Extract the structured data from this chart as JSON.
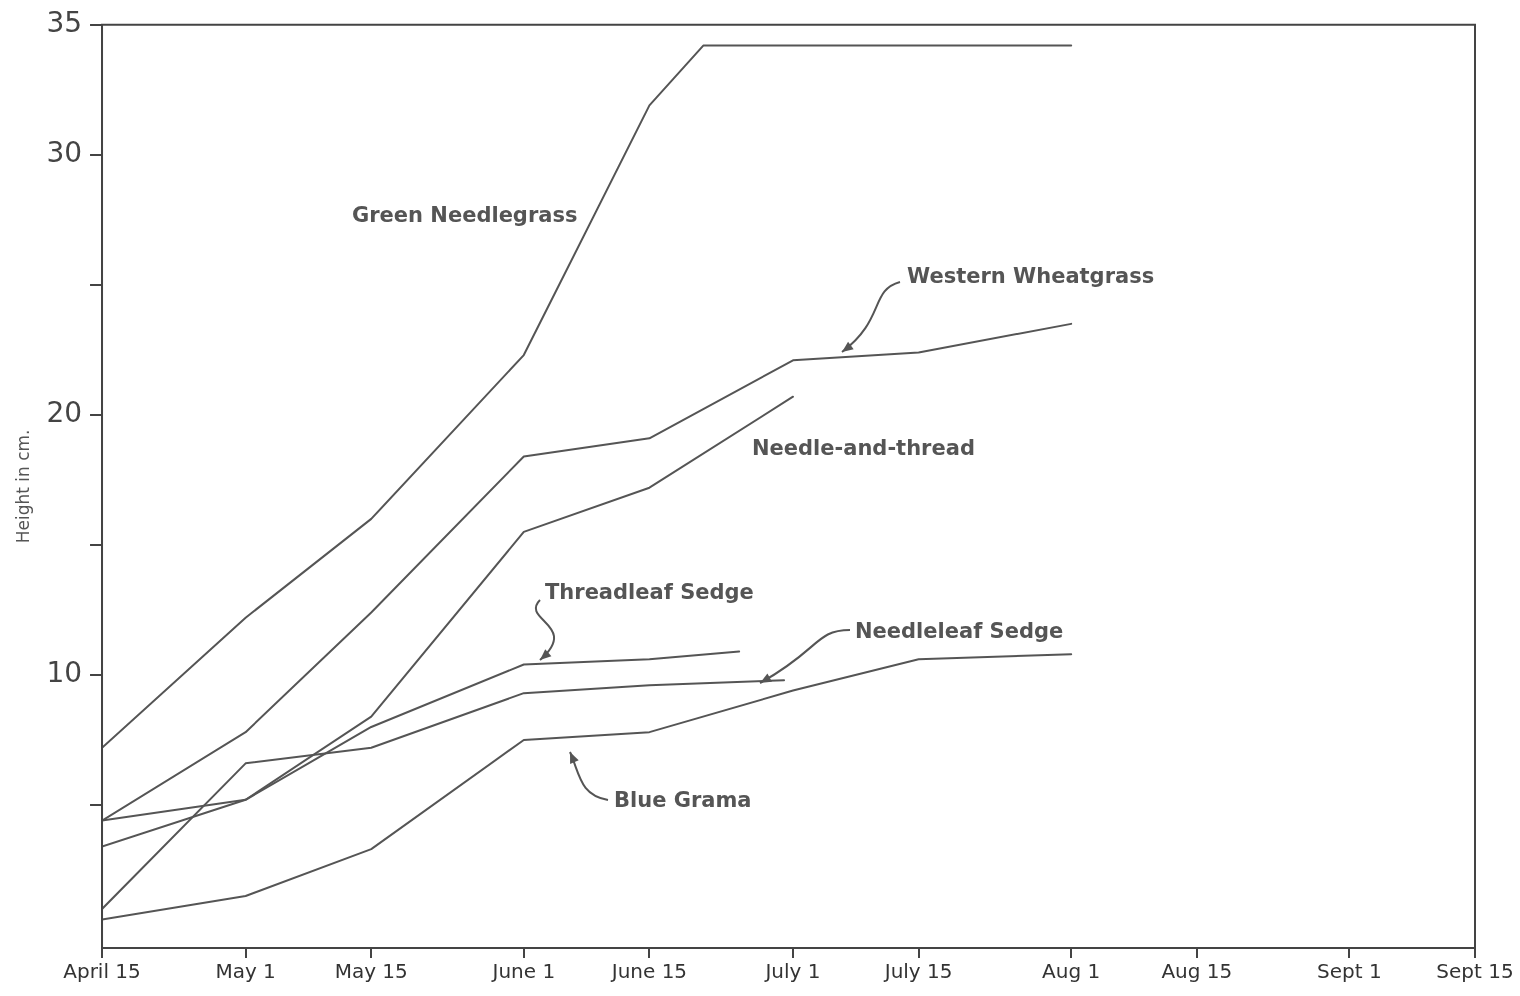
{
  "chart_data": {
    "type": "line",
    "ylabel": "Height in cm.",
    "xlim": [
      "--04-15",
      "--09-15"
    ],
    "xticks": [
      {
        "value": "--04-15",
        "label": "April 15"
      },
      {
        "value": "--05-01",
        "label": "May 1"
      },
      {
        "value": "--05-15",
        "label": "May 15"
      },
      {
        "value": "--06-01",
        "label": "June 1"
      },
      {
        "value": "--06-15",
        "label": "June 15"
      },
      {
        "value": "--07-01",
        "label": "July 1"
      },
      {
        "value": "--07-15",
        "label": "July 15"
      },
      {
        "value": "--08-01",
        "label": "Aug 1"
      },
      {
        "value": "--08-15",
        "label": "Aug 15"
      },
      {
        "value": "--09-01",
        "label": "Sept 1"
      },
      {
        "value": "--09-15",
        "label": "Sept 15"
      }
    ],
    "ylim": [
      -0.5,
      35
    ],
    "yticks": [
      {
        "value": 5,
        "label": null
      },
      10,
      {
        "value": 15,
        "label": null
      },
      20,
      {
        "value": 25,
        "label": null
      },
      30,
      35
    ],
    "grid": false,
    "legend": false,
    "marker": "none",
    "line_style": "solid",
    "series": [
      {
        "name": "Green Needlegrass",
        "color": "#555555",
        "x": [
          "--04-15",
          "--05-01",
          "--05-15",
          "--06-01",
          "--06-15",
          "--06-21",
          "--08-01"
        ],
        "values": [
          7.2,
          12.2,
          16.0,
          22.3,
          31.9,
          34.2,
          34.2
        ]
      },
      {
        "name": "Western Wheatgrass",
        "color": "#555555",
        "x": [
          "--04-15",
          "--05-01",
          "--05-15",
          "--06-01",
          "--06-15",
          "--07-01",
          "--07-15",
          "--08-01"
        ],
        "values": [
          4.4,
          7.8,
          12.4,
          18.4,
          19.1,
          22.1,
          22.4,
          23.5
        ]
      },
      {
        "name": "Needle-and-thread",
        "color": "#555555",
        "x": [
          "--04-15",
          "--05-01",
          "--05-15",
          "--06-01",
          "--06-15",
          "--07-01"
        ],
        "values": [
          3.4,
          5.2,
          8.4,
          15.5,
          17.2,
          20.7
        ]
      },
      {
        "name": "Threadleaf Sedge",
        "color": "#555555",
        "x": [
          "--04-15",
          "--05-01",
          "--05-15",
          "--06-01",
          "--06-15",
          "--06-25"
        ],
        "values": [
          4.4,
          5.2,
          8.0,
          10.4,
          10.6,
          10.9
        ]
      },
      {
        "name": "Needleleaf Sedge",
        "color": "#555555",
        "x": [
          "--04-15",
          "--05-01",
          "--05-15",
          "--06-01",
          "--06-15",
          "--06-30"
        ],
        "values": [
          1.0,
          6.6,
          7.2,
          9.3,
          9.6,
          9.8
        ]
      },
      {
        "name": "Blue Grama",
        "color": "#555555",
        "x": [
          "--04-15",
          "--05-01",
          "--05-15",
          "--06-01",
          "--06-15",
          "--07-01",
          "--07-15",
          "--08-01"
        ],
        "values": [
          0.6,
          1.5,
          3.3,
          7.5,
          7.8,
          9.4,
          10.6,
          10.8
        ]
      }
    ]
  }
}
